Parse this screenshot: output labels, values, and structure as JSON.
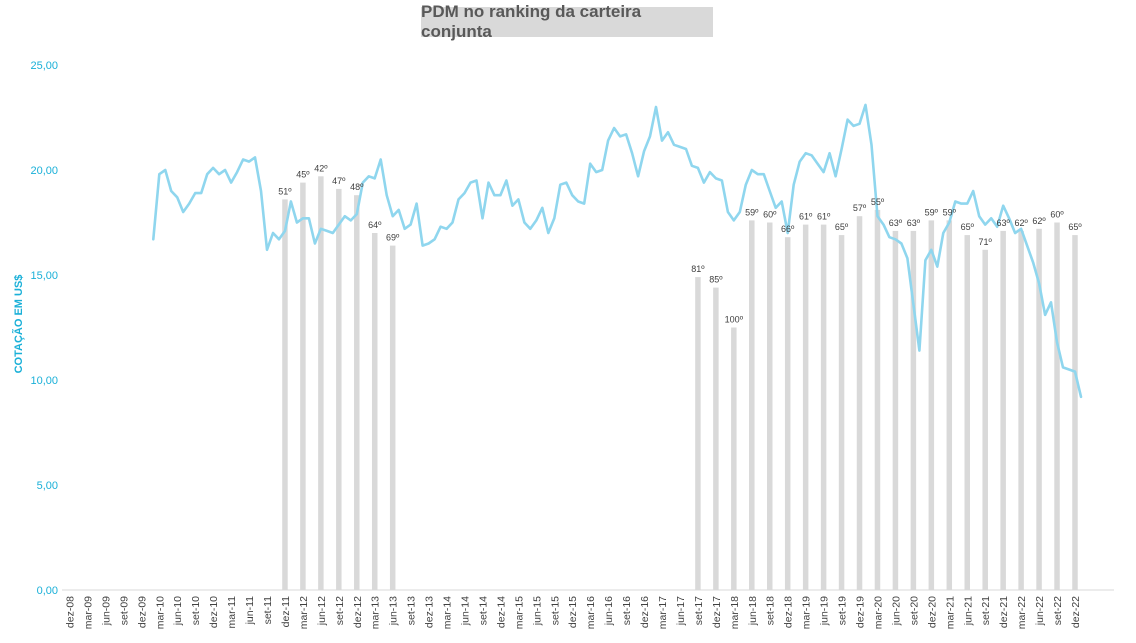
{
  "chart_data": {
    "type": "bar+line",
    "title": "PDM no ranking da carteira conjunta",
    "ylabel": "COTAÇÃO EM US$",
    "xlabel": "",
    "ylim": [
      0,
      25
    ],
    "yticks": [
      "0,00",
      "5,00",
      "10,00",
      "15,00",
      "20,00",
      "25,00"
    ],
    "x_tick_labels": [
      "dez-08",
      "mar-09",
      "jun-09",
      "set-09",
      "dez-09",
      "mar-10",
      "jun-10",
      "set-10",
      "dez-10",
      "mar-11",
      "jun-11",
      "set-11",
      "dez-11",
      "mar-12",
      "jun-12",
      "set-12",
      "dez-12",
      "mar-13",
      "jun-13",
      "set-13",
      "dez-13",
      "mar-14",
      "jun-14",
      "set-14",
      "dez-14",
      "mar-15",
      "jun-15",
      "set-15",
      "dez-15",
      "mar-16",
      "jun-16",
      "set-16",
      "dez-16",
      "mar-17",
      "jun-17",
      "set-17",
      "dez-17",
      "mar-18",
      "jun-18",
      "set-18",
      "dez-18",
      "mar-19",
      "jun-19",
      "set-19",
      "dez-19",
      "mar-20",
      "jun-20",
      "set-20",
      "dez-20",
      "mar-21",
      "jun-21",
      "set-21",
      "dez-21",
      "mar-22",
      "jun-22",
      "set-22",
      "dez-22"
    ],
    "bars": {
      "categories": [
        "dez-11",
        "mar-12",
        "jun-12",
        "set-12",
        "dez-12",
        "mar-13",
        "jun-13",
        "set-17",
        "dez-17",
        "mar-18",
        "jun-18",
        "set-18",
        "dez-18",
        "mar-19",
        "jun-19",
        "set-19",
        "dez-19",
        "mar-20",
        "jun-20",
        "set-20",
        "dez-20",
        "mar-21",
        "jun-21",
        "set-21",
        "dez-21",
        "mar-22",
        "jun-22",
        "set-22",
        "dez-22"
      ],
      "values": [
        18.6,
        19.4,
        19.7,
        19.1,
        18.8,
        17.0,
        16.4,
        14.9,
        14.4,
        12.5,
        17.6,
        17.5,
        16.8,
        17.4,
        17.4,
        16.9,
        17.8,
        18.1,
        17.1,
        17.1,
        17.6,
        17.6,
        16.9,
        16.2,
        17.1,
        17.1,
        17.2,
        17.5,
        16.9
      ],
      "labels": [
        "51º",
        "45º",
        "42º",
        "47º",
        "48º",
        "64º",
        "69º",
        "81º",
        "85º",
        "100º",
        "59º",
        "60º",
        "66º",
        "61º",
        "61º",
        "65º",
        "57º",
        "55º",
        "63º",
        "63º",
        "59º",
        "59º",
        "65º",
        "71º",
        "63º",
        "62º",
        "62º",
        "60º",
        "65º"
      ]
    },
    "line": {
      "start": "fev-10",
      "values": [
        16.7,
        19.8,
        20.0,
        19.0,
        18.7,
        18.0,
        18.4,
        18.9,
        18.9,
        19.8,
        20.1,
        19.8,
        20.0,
        19.4,
        19.9,
        20.5,
        20.4,
        20.6,
        19.0,
        16.2,
        17.0,
        16.7,
        17.1,
        18.5,
        17.5,
        17.7,
        17.7,
        16.5,
        17.2,
        17.1,
        17.0,
        17.4,
        17.8,
        17.6,
        17.9,
        19.4,
        19.7,
        19.6,
        20.5,
        18.8,
        17.8,
        18.1,
        17.2,
        17.4,
        18.4,
        16.4,
        16.5,
        16.7,
        17.3,
        17.2,
        17.5,
        18.6,
        18.9,
        19.4,
        19.5,
        17.7,
        19.4,
        18.8,
        18.8,
        19.5,
        18.3,
        18.6,
        17.5,
        17.2,
        17.6,
        18.2,
        17.0,
        17.7,
        19.3,
        19.4,
        18.8,
        18.5,
        18.4,
        20.3,
        19.9,
        20.0,
        21.4,
        22.0,
        21.6,
        21.7,
        20.8,
        19.7,
        20.9,
        21.6,
        23.0,
        21.4,
        21.8,
        21.2,
        21.1,
        21.0,
        20.2,
        20.1,
        19.4,
        19.9,
        19.6,
        19.5,
        18.0,
        17.6,
        18.0,
        19.3,
        20.0,
        19.8,
        19.8,
        19.0,
        18.2,
        18.5,
        17.0,
        19.3,
        20.4,
        20.8,
        20.7,
        20.3,
        19.9,
        20.8,
        19.7,
        21.0,
        22.4,
        22.1,
        22.2,
        23.1,
        21.2,
        17.8,
        17.4,
        16.8,
        16.7,
        16.5,
        15.8,
        13.6,
        11.4,
        15.7,
        16.2,
        15.4,
        17.0,
        17.5,
        18.5,
        18.4,
        18.4,
        19.0,
        17.8,
        17.4,
        17.7,
        17.3,
        18.3,
        17.7,
        17.0,
        17.2,
        16.4,
        15.6,
        14.6,
        13.1,
        13.7,
        11.8,
        10.6,
        10.5,
        10.4,
        9.2
      ]
    },
    "colors": {
      "bars": "#d9d9d9",
      "line": "#8fd6ee",
      "axis_text": "#1ab0d8"
    },
    "grid": false,
    "legend": "none"
  }
}
